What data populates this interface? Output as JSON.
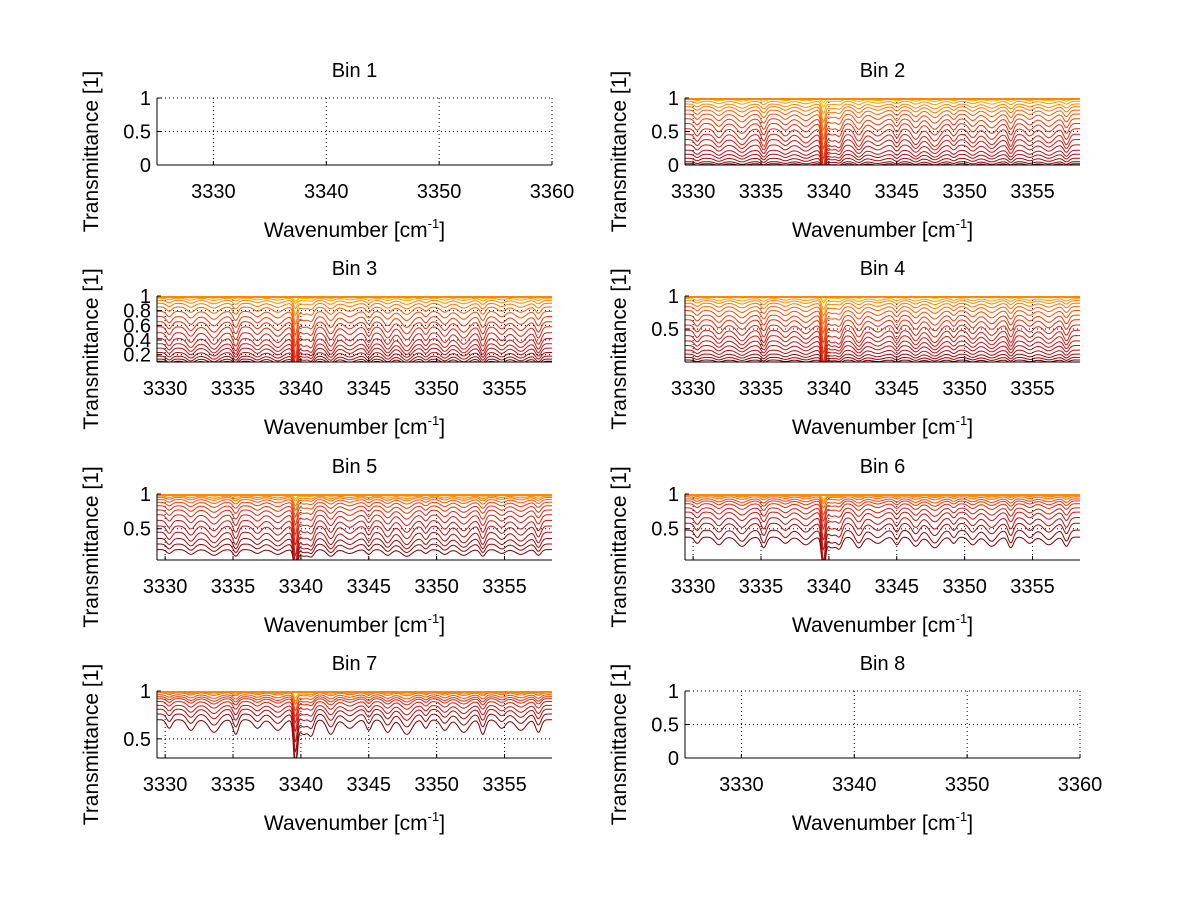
{
  "figure": {
    "background": "#ffffff",
    "line_colormap": [
      "#7a0000",
      "#a80a0a",
      "#c81414",
      "#e02010",
      "#f03a0a",
      "#ff6a00",
      "#ff9a00",
      "#ffd000",
      "#c8e040"
    ]
  },
  "chart_data": [
    {
      "type": "line",
      "title": "Bin 1",
      "xlabel": "Wavenumber [cm-1]",
      "xlabel_main": "Wavenumber [cm",
      "xlabel_sup": "-1",
      "xlabel_tail": "]",
      "ylabel": "Transmittance [1]",
      "xlim": [
        3325,
        3360
      ],
      "ylim": [
        0,
        1
      ],
      "xticks": [
        3330,
        3340,
        3350,
        3360
      ],
      "yticks": [
        0,
        0.5,
        1
      ],
      "ytick_labels": [
        "0",
        "0.5",
        "1"
      ],
      "grid": true,
      "series": [],
      "n_curves": 0,
      "empty": true
    },
    {
      "type": "line",
      "title": "Bin 2",
      "xlabel": "Wavenumber [cm-1]",
      "xlabel_main": "Wavenumber [cm",
      "xlabel_sup": "-1",
      "xlabel_tail": "]",
      "ylabel": "Transmittance [1]",
      "xlim": [
        3329.4,
        3358.5
      ],
      "ylim": [
        0,
        1
      ],
      "xticks": [
        3330,
        3335,
        3340,
        3345,
        3350,
        3355
      ],
      "yticks": [
        0,
        0.5,
        1
      ],
      "ytick_labels": [
        "0",
        "0.5",
        "1"
      ],
      "grid": true,
      "n_curves": 18,
      "curve_baselines": [
        0.02,
        0.05,
        0.1,
        0.16,
        0.22,
        0.3,
        0.38,
        0.46,
        0.54,
        0.62,
        0.69,
        0.76,
        0.82,
        0.87,
        0.91,
        0.95,
        0.98,
        1.0
      ],
      "strong_line_center": 3339.6,
      "absorption_lines": [
        3330.3,
        3331.9,
        3333.6,
        3335.2,
        3336.8,
        3338.3,
        3340.8,
        3342.2,
        3343.6,
        3345.0,
        3346.4,
        3347.8,
        3349.2,
        3350.6,
        3352.0,
        3353.4,
        3354.8,
        3356.2,
        3357.5
      ],
      "empty": false
    },
    {
      "type": "line",
      "title": "Bin 3",
      "xlabel": "Wavenumber [cm-1]",
      "xlabel_main": "Wavenumber [cm",
      "xlabel_sup": "-1",
      "xlabel_tail": "]",
      "ylabel": "Transmittance [1]",
      "xlim": [
        3329.4,
        3358.5
      ],
      "ylim": [
        0.1,
        1
      ],
      "xticks": [
        3330,
        3335,
        3340,
        3345,
        3350,
        3355
      ],
      "yticks": [
        0.2,
        0.4,
        0.6,
        0.8,
        1
      ],
      "ytick_labels": [
        "0.2",
        "0.4",
        "0.6",
        "0.8",
        "1"
      ],
      "grid": true,
      "n_curves": 18,
      "curve_baselines": [
        0.11,
        0.14,
        0.18,
        0.23,
        0.29,
        0.35,
        0.42,
        0.5,
        0.58,
        0.65,
        0.72,
        0.79,
        0.85,
        0.9,
        0.94,
        0.97,
        0.99,
        1.0
      ],
      "strong_line_center": 3339.6,
      "absorption_lines": [
        3330.3,
        3331.9,
        3333.6,
        3335.2,
        3336.8,
        3338.3,
        3340.8,
        3342.2,
        3343.6,
        3345.0,
        3346.4,
        3347.8,
        3349.2,
        3350.6,
        3352.0,
        3353.4,
        3354.8,
        3356.2,
        3357.5
      ],
      "empty": false
    },
    {
      "type": "line",
      "title": "Bin 4",
      "xlabel": "Wavenumber [cm-1]",
      "xlabel_main": "Wavenumber [cm",
      "xlabel_sup": "-1",
      "xlabel_tail": "]",
      "ylabel": "Transmittance [1]",
      "xlim": [
        3329.4,
        3358.5
      ],
      "ylim": [
        0,
        1
      ],
      "xticks": [
        3330,
        3335,
        3340,
        3345,
        3350,
        3355
      ],
      "yticks": [
        0.5,
        1
      ],
      "ytick_labels": [
        "0.5",
        "1"
      ],
      "grid": true,
      "n_curves": 18,
      "curve_baselines": [
        0.03,
        0.07,
        0.12,
        0.18,
        0.25,
        0.32,
        0.4,
        0.48,
        0.56,
        0.64,
        0.71,
        0.78,
        0.84,
        0.89,
        0.93,
        0.96,
        0.99,
        1.0
      ],
      "strong_line_center": 3339.6,
      "absorption_lines": [
        3330.3,
        3331.9,
        3333.6,
        3335.2,
        3336.8,
        3338.3,
        3340.8,
        3342.2,
        3343.6,
        3345.0,
        3346.4,
        3347.8,
        3349.2,
        3350.6,
        3352.0,
        3353.4,
        3354.8,
        3356.2,
        3357.5
      ],
      "empty": false
    },
    {
      "type": "line",
      "title": "Bin 5",
      "xlabel": "Wavenumber [cm-1]",
      "xlabel_main": "Wavenumber [cm",
      "xlabel_sup": "-1",
      "xlabel_tail": "]",
      "ylabel": "Transmittance [1]",
      "xlim": [
        3329.4,
        3358.5
      ],
      "ylim": [
        0.05,
        1
      ],
      "xticks": [
        3330,
        3335,
        3340,
        3345,
        3350,
        3355
      ],
      "yticks": [
        0.5,
        1
      ],
      "ytick_labels": [
        "0.5",
        "1"
      ],
      "grid": true,
      "n_curves": 16,
      "curve_baselines": [
        0.2,
        0.28,
        0.36,
        0.45,
        0.54,
        0.62,
        0.7,
        0.77,
        0.83,
        0.88,
        0.92,
        0.95,
        0.97,
        0.99,
        1.0,
        1.0
      ],
      "strong_line_center": 3339.6,
      "absorption_lines": [
        3330.3,
        3331.9,
        3333.6,
        3335.2,
        3336.8,
        3338.3,
        3340.8,
        3342.2,
        3343.6,
        3345.0,
        3346.4,
        3347.8,
        3349.2,
        3350.6,
        3352.0,
        3353.4,
        3354.8,
        3356.2,
        3357.5
      ],
      "empty": false
    },
    {
      "type": "line",
      "title": "Bin 6",
      "xlabel": "Wavenumber [cm-1]",
      "xlabel_main": "Wavenumber [cm",
      "xlabel_sup": "-1",
      "xlabel_tail": "]",
      "ylabel": "Transmittance [1]",
      "xlim": [
        3329.4,
        3358.5
      ],
      "ylim": [
        0.05,
        1
      ],
      "xticks": [
        3330,
        3335,
        3340,
        3345,
        3350,
        3355
      ],
      "yticks": [
        0.5,
        1
      ],
      "ytick_labels": [
        "0.5",
        "1"
      ],
      "grid": true,
      "n_curves": 14,
      "curve_baselines": [
        0.38,
        0.48,
        0.58,
        0.66,
        0.74,
        0.8,
        0.86,
        0.9,
        0.93,
        0.96,
        0.98,
        0.99,
        1.0,
        1.0
      ],
      "strong_line_center": 3339.6,
      "absorption_lines": [
        3330.3,
        3331.9,
        3333.6,
        3335.2,
        3336.8,
        3338.3,
        3340.8,
        3342.2,
        3343.6,
        3345.0,
        3346.4,
        3347.8,
        3349.2,
        3350.6,
        3352.0,
        3353.4,
        3354.8,
        3356.2,
        3357.5
      ],
      "empty": false
    },
    {
      "type": "line",
      "title": "Bin 7",
      "xlabel": "Wavenumber [cm-1]",
      "xlabel_main": "Wavenumber [cm",
      "xlabel_sup": "-1",
      "xlabel_tail": "]",
      "ylabel": "Transmittance [1]",
      "xlim": [
        3329.4,
        3358.5
      ],
      "ylim": [
        0.3,
        1
      ],
      "xticks": [
        3330,
        3335,
        3340,
        3345,
        3350,
        3355
      ],
      "yticks": [
        0.5,
        1
      ],
      "ytick_labels": [
        "0.5",
        "1"
      ],
      "grid": true,
      "n_curves": 12,
      "curve_baselines": [
        0.7,
        0.76,
        0.81,
        0.85,
        0.89,
        0.92,
        0.94,
        0.96,
        0.98,
        0.99,
        1.0,
        1.0
      ],
      "strong_line_center": 3339.6,
      "absorption_lines": [
        3330.3,
        3331.9,
        3333.6,
        3335.2,
        3336.8,
        3338.3,
        3340.8,
        3342.2,
        3343.6,
        3345.0,
        3346.4,
        3347.8,
        3349.2,
        3350.6,
        3352.0,
        3353.4,
        3354.8,
        3356.2,
        3357.5
      ],
      "empty": false
    },
    {
      "type": "line",
      "title": "Bin 8",
      "xlabel": "Wavenumber [cm-1]",
      "xlabel_main": "Wavenumber [cm",
      "xlabel_sup": "-1",
      "xlabel_tail": "]",
      "ylabel": "Transmittance [1]",
      "xlim": [
        3325,
        3360
      ],
      "ylim": [
        0,
        1
      ],
      "xticks": [
        3330,
        3340,
        3350,
        3360
      ],
      "yticks": [
        0,
        0.5,
        1
      ],
      "ytick_labels": [
        "0",
        "0.5",
        "1"
      ],
      "grid": true,
      "series": [],
      "n_curves": 0,
      "empty": true
    }
  ]
}
